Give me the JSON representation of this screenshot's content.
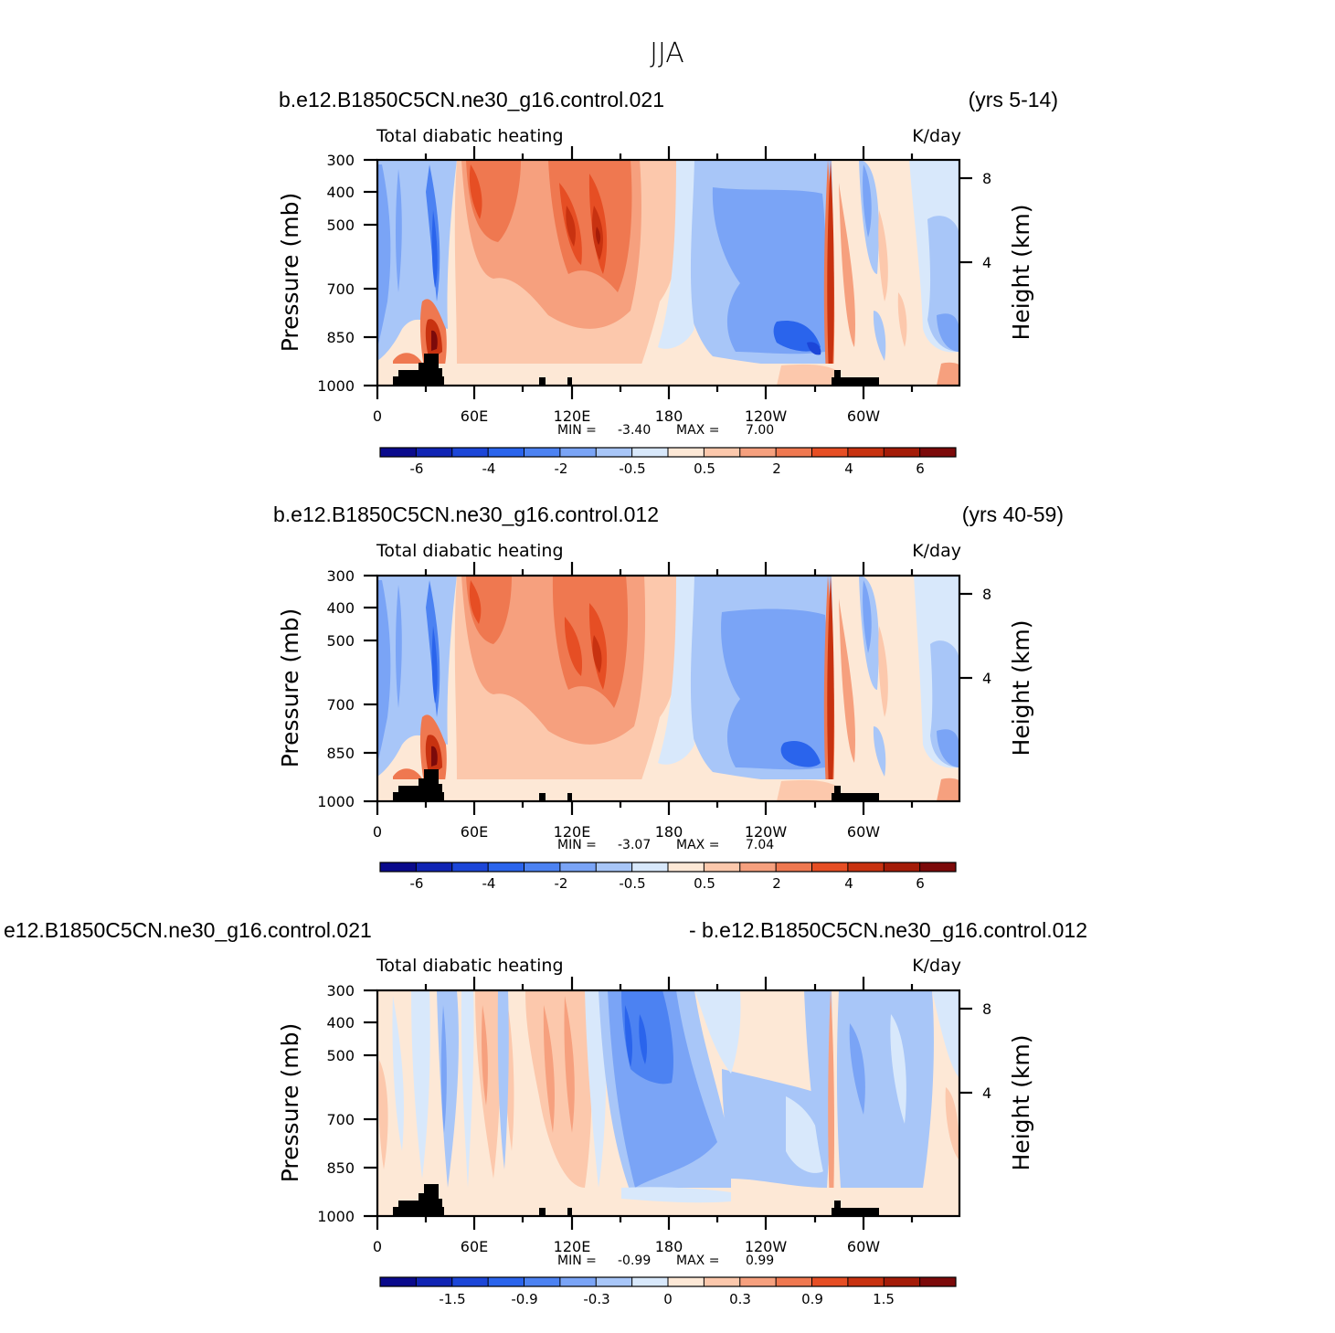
{
  "figure_title": "JJA",
  "chart_data": [
    {
      "type": "heatmap",
      "run": "b.e12.B1850C5CN.ne30_g16.control.021",
      "years": "(yrs 5-14)",
      "title": "Total diabatic heating",
      "units": "K/day",
      "ylabel": "Pressure (mb)",
      "ylabel_right": "Height (km)",
      "pressure_ticks": [
        "300",
        "400",
        "500",
        "700",
        "850",
        "1000"
      ],
      "height_ticks": [
        "8",
        "4"
      ],
      "lon_ticks": [
        "0",
        "60E",
        "120E",
        "180",
        "120W",
        "60W"
      ],
      "stats": {
        "min_label": "MIN =",
        "min": "-3.40",
        "max_label": "MAX =",
        "max": "7.00"
      },
      "colorbar_labels": [
        "-6",
        "-4",
        "-2",
        "-0.5",
        "0.5",
        "2",
        "4",
        "6"
      ]
    },
    {
      "type": "heatmap",
      "run": "b.e12.B1850C5CN.ne30_g16.control.012",
      "years": "(yrs 40-59)",
      "title": "Total diabatic heating",
      "units": "K/day",
      "ylabel": "Pressure (mb)",
      "ylabel_right": "Height (km)",
      "pressure_ticks": [
        "300",
        "400",
        "500",
        "700",
        "850",
        "1000"
      ],
      "height_ticks": [
        "8",
        "4"
      ],
      "lon_ticks": [
        "0",
        "60E",
        "120E",
        "180",
        "120W",
        "60W"
      ],
      "stats": {
        "min_label": "MIN =",
        "min": "-3.07",
        "max_label": "MAX =",
        "max": "7.04"
      },
      "colorbar_labels": [
        "-6",
        "-4",
        "-2",
        "-0.5",
        "0.5",
        "2",
        "4",
        "6"
      ]
    },
    {
      "type": "heatmap",
      "run": "e12.B1850C5CN.ne30_g16.control.021",
      "years": "- b.e12.B1850C5CN.ne30_g16.control.012",
      "title": "Total diabatic heating",
      "units": "K/day",
      "ylabel": "Pressure (mb)",
      "ylabel_right": "Height (km)",
      "pressure_ticks": [
        "300",
        "400",
        "500",
        "700",
        "850",
        "1000"
      ],
      "height_ticks": [
        "8",
        "4"
      ],
      "lon_ticks": [
        "0",
        "60E",
        "120E",
        "180",
        "120W",
        "60W"
      ],
      "stats": {
        "min_label": "MIN =",
        "min": "-0.99",
        "max_label": "MAX =",
        "max": "0.99"
      },
      "colorbar_labels": [
        "-1.5",
        "-0.9",
        "-0.3",
        "0",
        "0.3",
        "0.9",
        "1.5"
      ]
    }
  ],
  "colors": {
    "palette": [
      "#0a0a8c",
      "#1024b4",
      "#1c46d8",
      "#2a64ec",
      "#4c82f2",
      "#7aa4f6",
      "#a8c6f8",
      "#d8e8fb",
      "#fde8d6",
      "#fcc8ac",
      "#f6a07e",
      "#ef7850",
      "#e64e24",
      "#c83210",
      "#a41c08",
      "#7c0a0a"
    ],
    "topography": "#000000"
  }
}
